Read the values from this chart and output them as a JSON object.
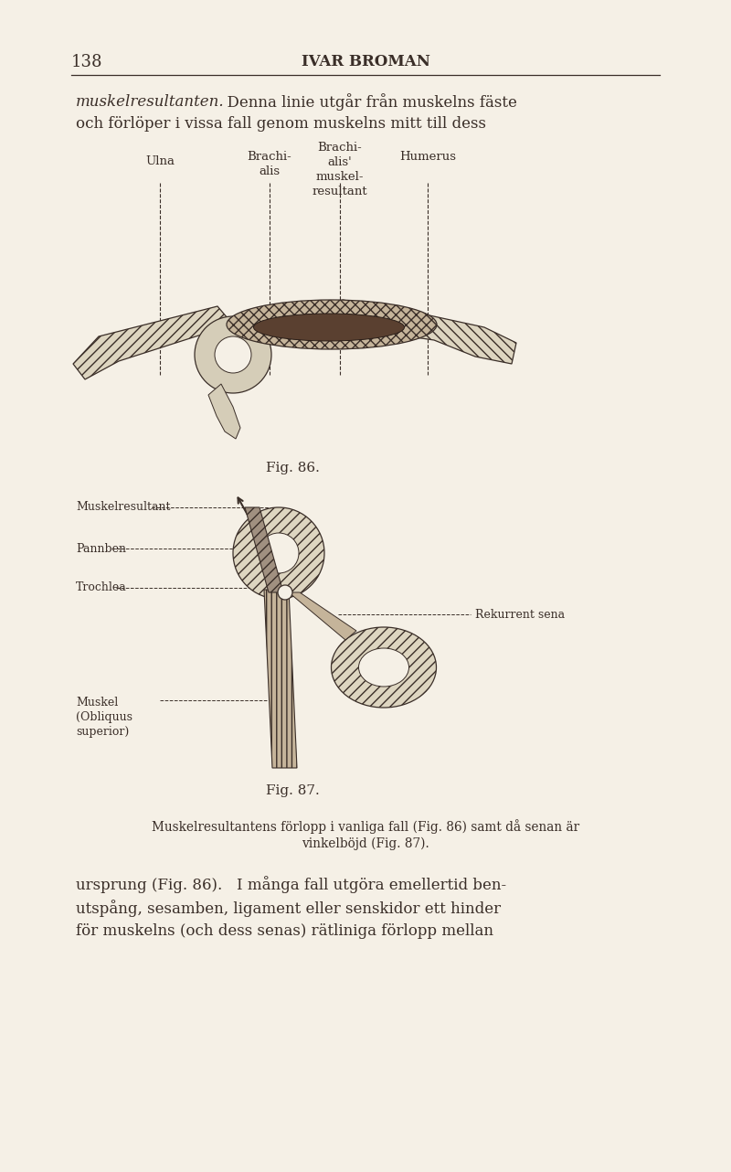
{
  "bg_color": "#f5f0e6",
  "text_color": "#3a2e28",
  "page_number": "138",
  "header": "IVAR BROMAN",
  "italic_start": "muskelresultanten.",
  "line1_rest": "  Denna linie utgår från muskelns fäste",
  "line2": "och förlöper i vissa fall genom muskelns mitt till dess",
  "fig86_caption": "Fig. 86.",
  "fig87_caption": "Fig. 87.",
  "caption1": "Muskelresultantens förlopp i vanliga fall (Fig. 86) samt då senan är",
  "caption2": "vinkelböjd (Fig. 87).",
  "body1": "ursprung (Fig. 86).   I många fall utgöra emellertid ben-",
  "body2": "utspång, sesamben, ligament eller senskidor ett hinder",
  "body3": "för muskelns (och dess senas) rätliniga förlopp mellan"
}
